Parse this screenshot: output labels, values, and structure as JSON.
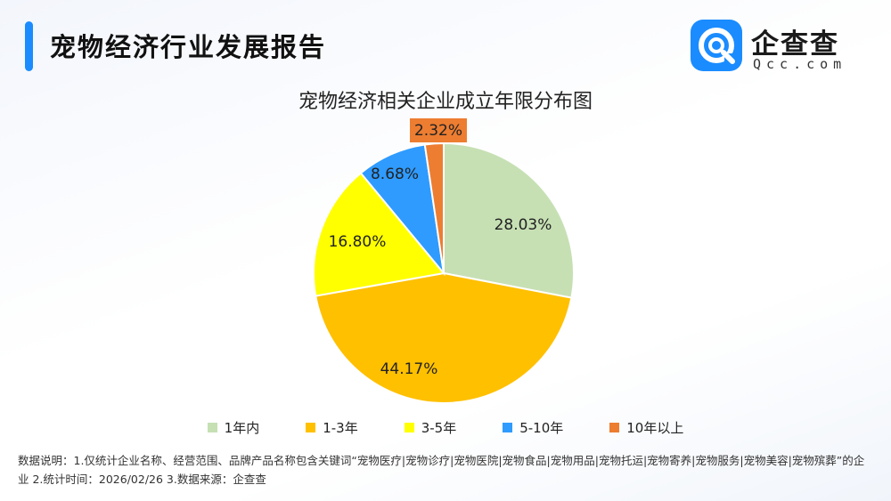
{
  "header": {
    "title": "宠物经济行业发展报告",
    "accent_color": "#1a8cff"
  },
  "brand": {
    "name": "企查查",
    "domain": "Qcc.com",
    "icon": "qcc-logo-icon"
  },
  "chart_data": {
    "type": "pie",
    "title": "宠物经济相关企业成立年限分布图",
    "categories": [
      "1年内",
      "1-3年",
      "3-5年",
      "5-10年",
      "10年以上"
    ],
    "values": [
      28.03,
      44.17,
      16.8,
      8.68,
      2.32
    ],
    "labels": [
      "28.03%",
      "44.17%",
      "16.80%",
      "8.68%",
      "2.32%"
    ],
    "colors": [
      "#c6e0b4",
      "#ffc000",
      "#ffff00",
      "#2f9bff",
      "#ed7d31"
    ],
    "start_angle": "12 o'clock",
    "direction": "clockwise",
    "legend": "bottom"
  },
  "footnote": "数据说明：1.仅统计企业名称、经营范围、品牌产品名称包含关键词“宠物医疗|宠物诊疗|宠物医院|宠物食品|宠物用品|宠物托运|宠物寄养|宠物服务|宠物美容|宠物殡葬”的企业  2.统计时间：2026/02/26   3.数据来源：企查查"
}
